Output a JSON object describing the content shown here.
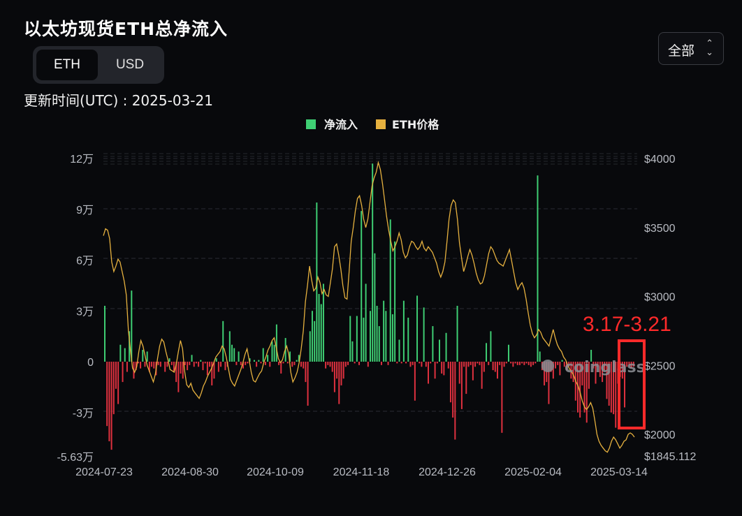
{
  "header": {
    "title": "以太坊现货ETH总净流入",
    "updated": "更新时间(UTC) : 2025-03-21"
  },
  "toggle": {
    "options": [
      "ETH",
      "USD"
    ],
    "selected": "ETH"
  },
  "range_select": {
    "label": "全部",
    "icon": "chevron-up-down-icon"
  },
  "watermark": "coinglass",
  "annotation": {
    "text": "3.17-3.21",
    "color": "#ff2a2a"
  },
  "colors": {
    "inflow": "#3fcf74",
    "outflow": "#e0313f",
    "price": "#e6b13f",
    "grid": "#2a2c33"
  },
  "chart_data": {
    "type": "bar",
    "legend": [
      "净流入",
      "ETH价格"
    ],
    "legend_position": "top-center",
    "x_tick_labels": [
      "2024-07-23",
      "2024-08-30",
      "2024-10-09",
      "2024-11-18",
      "2024-12-26",
      "2025-02-04",
      "2025-03-14"
    ],
    "y_left": {
      "tick_labels": [
        "12万",
        "9万",
        "6万",
        "3万",
        "0",
        "-3万",
        "-5.63万"
      ],
      "ticks": [
        120000,
        90000,
        60000,
        30000,
        0,
        -30000,
        -56300
      ],
      "range": [
        -56300,
        120000
      ]
    },
    "y_right": {
      "tick_labels": [
        "$4000",
        "$3500",
        "$3000",
        "$2500",
        "$2000",
        "$1845.112"
      ],
      "ticks": [
        4000,
        3500,
        3000,
        2500,
        2000,
        1845.112
      ],
      "range": [
        1845.112,
        4000
      ]
    },
    "grid": true,
    "series": [
      {
        "name": "净流入",
        "type": "bar",
        "start_date": "2024-07-23",
        "values": [
          33000,
          -38000,
          -47000,
          -52000,
          -31000,
          -16000,
          -25000,
          10000,
          -12000,
          8000,
          -6000,
          18000,
          42000,
          -10000,
          -5000,
          -1000,
          -4000,
          7000,
          -3000,
          6000,
          -6000,
          -3000,
          -4000,
          -8000,
          -2000,
          -3000,
          0,
          -6000,
          -3000,
          2000,
          -2000,
          -6000,
          -12000,
          -18000,
          -7000,
          -10000,
          -2000,
          -5000,
          -2000,
          4000,
          -3000,
          -1000,
          -3000,
          1000,
          -5000,
          -1000,
          -8000,
          -3000,
          -14000,
          -10000,
          2000,
          -6000,
          -3000,
          24000,
          -5000,
          -3000,
          18000,
          10000,
          8000,
          -2000,
          6000,
          -2000,
          -4000,
          -2000,
          -1000,
          2000,
          0,
          1000,
          -3000,
          1000,
          -1000,
          8000,
          -2000,
          4000,
          -3000,
          12000,
          10000,
          22000,
          -2000,
          -7000,
          -1000,
          14000,
          -1000,
          6000,
          -3000,
          -2000,
          1000,
          4000,
          -3000,
          -4000,
          -12000,
          -26000,
          18000,
          30000,
          24000,
          94000,
          40000,
          34000,
          46000,
          -4000,
          -2000,
          -3000,
          -6000,
          -18000,
          -10000,
          -25000,
          -14000,
          -10000,
          -3000,
          -2000,
          27000,
          12000,
          -1000,
          27000,
          -2000,
          89000,
          26000,
          46000,
          -3000,
          30000,
          117000,
          64000,
          33000,
          21000,
          -2000,
          36000,
          30000,
          -2000,
          84000,
          28000,
          71000,
          -1000,
          13000,
          -1000,
          36000,
          -1000,
          26000,
          -3000,
          -2000,
          -23000,
          39000,
          -1000,
          -3000,
          32000,
          -3000,
          -13000,
          -1000,
          21000,
          -10000,
          -1000,
          13000,
          -7000,
          -8000,
          17000,
          -4000,
          -24000,
          -33000,
          -46000,
          33000,
          -13000,
          -28000,
          -3000,
          -19000,
          -3000,
          -2000,
          -11000,
          -3000,
          -1000,
          -2000,
          -16000,
          -6000,
          11000,
          -2000,
          18000,
          -5000,
          -6000,
          -10000,
          -2000,
          -42000,
          -3000,
          -1000,
          10000,
          -1000,
          -3000,
          -1000,
          -2000,
          -2000,
          -1000,
          -2000,
          -1000,
          -2000,
          -3000,
          -2000,
          -1000,
          110000,
          6000,
          -5000,
          -14000,
          -12000,
          -25000,
          -6000,
          -10000,
          -4000,
          -2000,
          -8000,
          1000,
          -3000,
          -5000,
          -3000,
          -10000,
          -12000,
          -23000,
          -30000,
          -33000,
          -14000,
          -30000,
          -36000,
          -16000,
          7000,
          -4000,
          -13000,
          -3000,
          -9000,
          -12000,
          -5000,
          -22000,
          -26000,
          -30000,
          -31000,
          -39000,
          -13000,
          -9000,
          -10000,
          -27000,
          -3000,
          -2000,
          -4000,
          -3000
        ]
      },
      {
        "name": "ETH价格",
        "type": "line",
        "values": [
          3440,
          3490,
          3480,
          3420,
          3250,
          3180,
          3220,
          3270,
          3250,
          3180,
          3110,
          3010,
          2750,
          2610,
          2480,
          2450,
          2490,
          2600,
          2680,
          2640,
          2570,
          2500,
          2460,
          2420,
          2380,
          2440,
          2550,
          2640,
          2690,
          2670,
          2600,
          2540,
          2470,
          2460,
          2450,
          2510,
          2600,
          2680,
          2620,
          2460,
          2360,
          2340,
          2370,
          2320,
          2300,
          2280,
          2260,
          2300,
          2350,
          2380,
          2420,
          2450,
          2480,
          2520,
          2560,
          2580,
          2600,
          2640,
          2620,
          2560,
          2480,
          2400,
          2370,
          2350,
          2390,
          2430,
          2470,
          2520,
          2580,
          2620,
          2540,
          2450,
          2390,
          2380,
          2410,
          2440,
          2460,
          2520,
          2560,
          2610,
          2640,
          2680,
          2700,
          2630,
          2550,
          2520,
          2540,
          2600,
          2640,
          2580,
          2450,
          2380,
          2410,
          2450,
          2520,
          2620,
          2750,
          2960,
          3080,
          3220,
          3120,
          3040,
          3060,
          3140,
          3100,
          3020,
          3050,
          3010,
          3000,
          3100,
          3200,
          3360,
          3380,
          3300,
          3200,
          3080,
          2990,
          2980,
          3180,
          3400,
          3500,
          3620,
          3710,
          3730,
          3660,
          3560,
          3500,
          3560,
          3680,
          3800,
          3860,
          3900,
          3970,
          3920,
          3820,
          3700,
          3580,
          3480,
          3400,
          3330,
          3360,
          3400,
          3460,
          3410,
          3320,
          3280,
          3300,
          3360,
          3400,
          3390,
          3360,
          3340,
          3360,
          3400,
          3350,
          3330,
          3360,
          3340,
          3320,
          3280,
          3240,
          3180,
          3140,
          3180,
          3250,
          3400,
          3560,
          3660,
          3700,
          3680,
          3560,
          3390,
          3280,
          3180,
          3230,
          3290,
          3340,
          3300,
          3240,
          3170,
          3120,
          3090,
          3100,
          3150,
          3230,
          3310,
          3360,
          3340,
          3300,
          3260,
          3240,
          3230,
          3220,
          3260,
          3300,
          3340,
          3260,
          3180,
          3100,
          3050,
          3080,
          3100,
          3060,
          2980,
          2880,
          2790,
          2730,
          2700,
          2720,
          2760,
          2740,
          2700,
          2680,
          2660,
          2640,
          2700,
          2760,
          2700,
          2650,
          2620,
          2600,
          2560,
          2540,
          2500,
          2470,
          2450,
          2420,
          2380,
          2350,
          2300,
          2240,
          2200,
          2180,
          2200,
          2230,
          2190,
          2100,
          2000,
          1950,
          1920,
          1900,
          1880,
          1870,
          1900,
          1950,
          1980,
          1960,
          1930,
          1900,
          1920,
          1950,
          1960,
          2000,
          2010,
          2000,
          1980
        ]
      }
    ]
  }
}
